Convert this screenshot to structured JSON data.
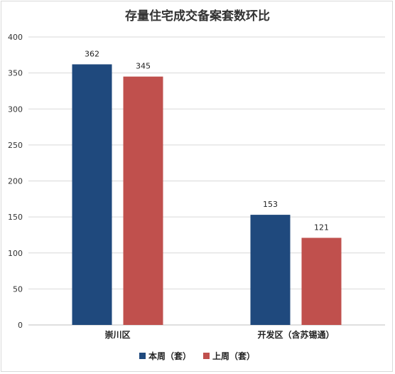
{
  "chart_data": {
    "type": "bar",
    "title": "存量住宅成交备案套数环比",
    "categories": [
      "崇川区",
      "开发区（含苏锡通）"
    ],
    "series": [
      {
        "name": "本周（套）",
        "values": [
          362,
          153
        ],
        "color": "#1F497D"
      },
      {
        "name": "上周（套）",
        "values": [
          345,
          121
        ],
        "color": "#C0504D"
      }
    ],
    "ylim": [
      0,
      400
    ],
    "yticks": [
      0,
      50,
      100,
      150,
      200,
      250,
      300,
      350,
      400
    ],
    "grid": true,
    "legend_position": "bottom",
    "xlabel": "",
    "ylabel": ""
  }
}
